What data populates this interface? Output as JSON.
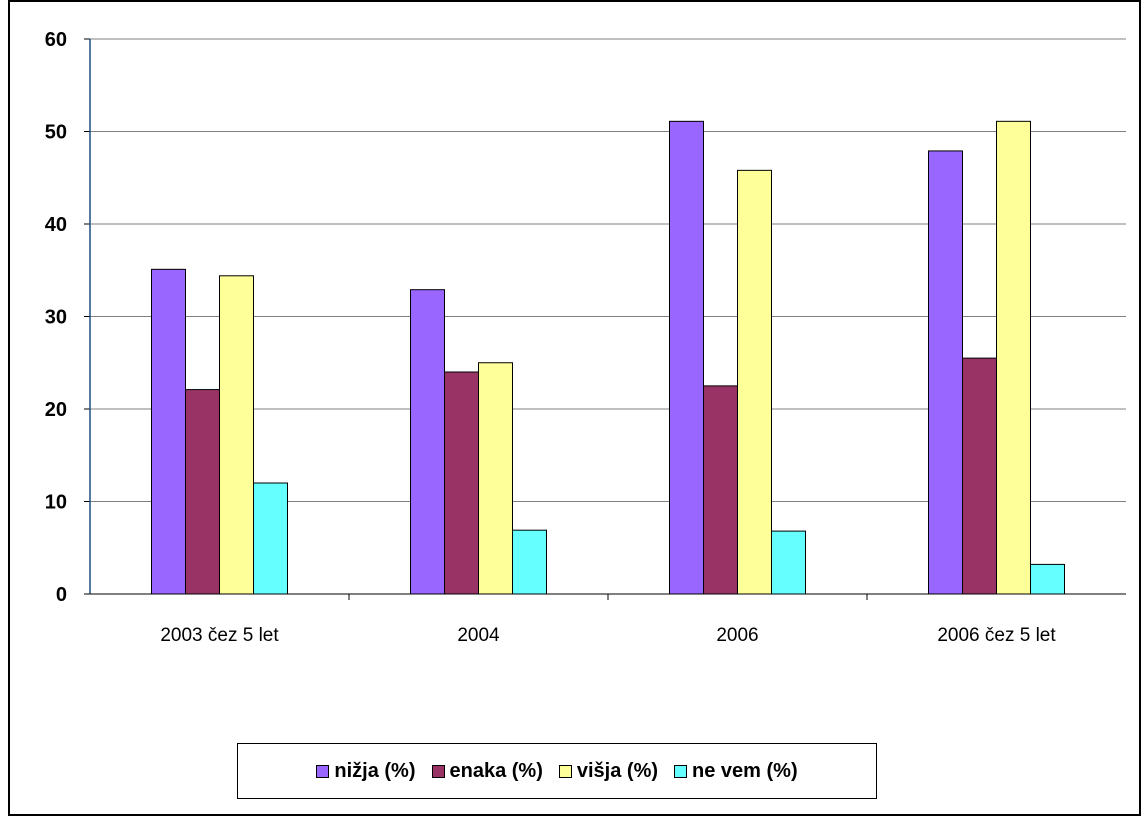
{
  "chart_data": {
    "type": "bar",
    "categories": [
      "2003 čez 5 let",
      "2004",
      "2006",
      "2006 čez 5 let"
    ],
    "series": [
      {
        "name": "nižja (%)",
        "color": "#9966ff",
        "values": [
          35.1,
          32.9,
          51.1,
          47.9
        ]
      },
      {
        "name": "enaka (%)",
        "color": "#993366",
        "values": [
          22.1,
          24.0,
          22.5,
          25.5
        ]
      },
      {
        "name": "višja (%)",
        "color": "#ffff99",
        "values": [
          34.4,
          25.0,
          45.8,
          51.1
        ]
      },
      {
        "name": "ne vem (%)",
        "color": "#66ffff",
        "values": [
          12.0,
          6.9,
          6.8,
          3.2
        ]
      }
    ],
    "ylim": [
      0,
      60
    ],
    "yticks": [
      "0",
      "10",
      "20",
      "30",
      "40",
      "50",
      "60"
    ],
    "grid": true,
    "legend_position": "bottom"
  }
}
